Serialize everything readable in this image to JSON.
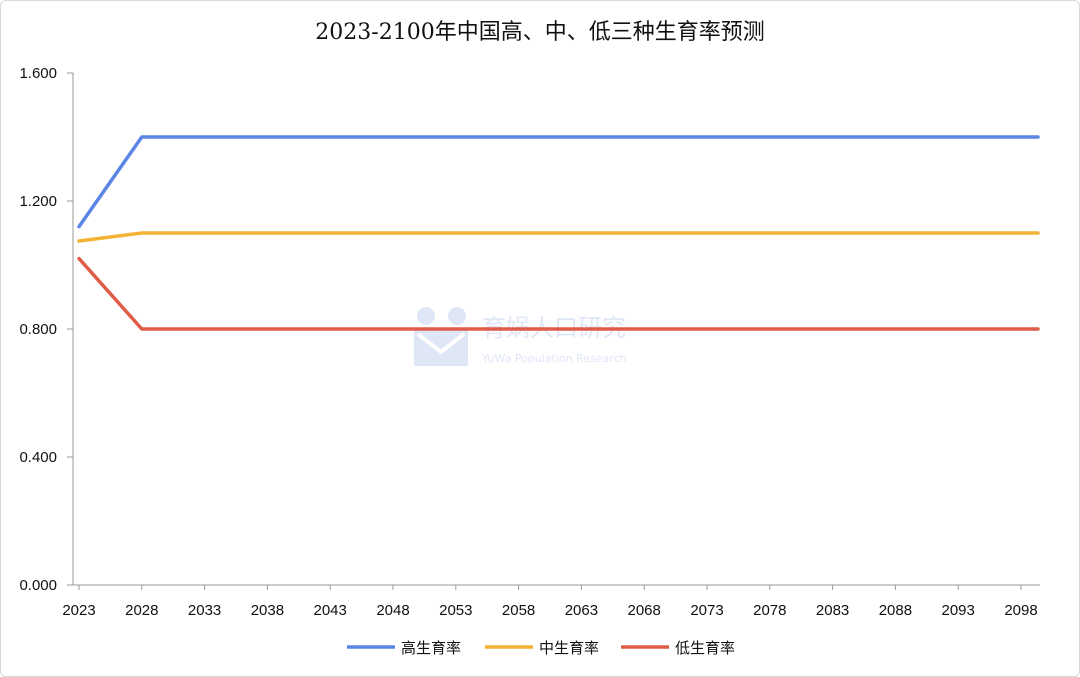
{
  "chart_data": {
    "type": "line",
    "title": "2023-2100年中国高、中、低三种生育率预测",
    "xlabel": "",
    "ylabel": "",
    "x": [
      2023,
      2028,
      2033,
      2038,
      2043,
      2048,
      2053,
      2058,
      2063,
      2068,
      2073,
      2078,
      2083,
      2088,
      2093,
      2098,
      2100
    ],
    "x_tick_labels": [
      "2023",
      "2028",
      "2033",
      "2038",
      "2043",
      "2048",
      "2053",
      "2058",
      "2063",
      "2068",
      "2073",
      "2078",
      "2083",
      "2088",
      "2093",
      "2098"
    ],
    "y_tick_labels": [
      "0.000",
      "0.400",
      "0.800",
      "1.200",
      "1.600"
    ],
    "ylim": [
      0,
      1.6
    ],
    "xlim": [
      2023,
      2100
    ],
    "grid": false,
    "legend_position": "bottom",
    "series": [
      {
        "name": "高生育率",
        "color": "#5b86e5",
        "values": [
          1.12,
          1.4,
          1.4,
          1.4,
          1.4,
          1.4,
          1.4,
          1.4,
          1.4,
          1.4,
          1.4,
          1.4,
          1.4,
          1.4,
          1.4,
          1.4,
          1.4
        ]
      },
      {
        "name": "中生育率",
        "color": "#f2b233",
        "values": [
          1.075,
          1.1,
          1.1,
          1.1,
          1.1,
          1.1,
          1.1,
          1.1,
          1.1,
          1.1,
          1.1,
          1.1,
          1.1,
          1.1,
          1.1,
          1.1,
          1.1
        ]
      },
      {
        "name": "低生育率",
        "color": "#e15c48",
        "values": [
          1.02,
          0.8,
          0.8,
          0.8,
          0.8,
          0.8,
          0.8,
          0.8,
          0.8,
          0.8,
          0.8,
          0.8,
          0.8,
          0.8,
          0.8,
          0.8,
          0.8
        ]
      }
    ]
  },
  "watermark": {
    "text": "育娲人口研究",
    "subtext": "YuWa Population Research",
    "color": "#dfe6f6"
  }
}
